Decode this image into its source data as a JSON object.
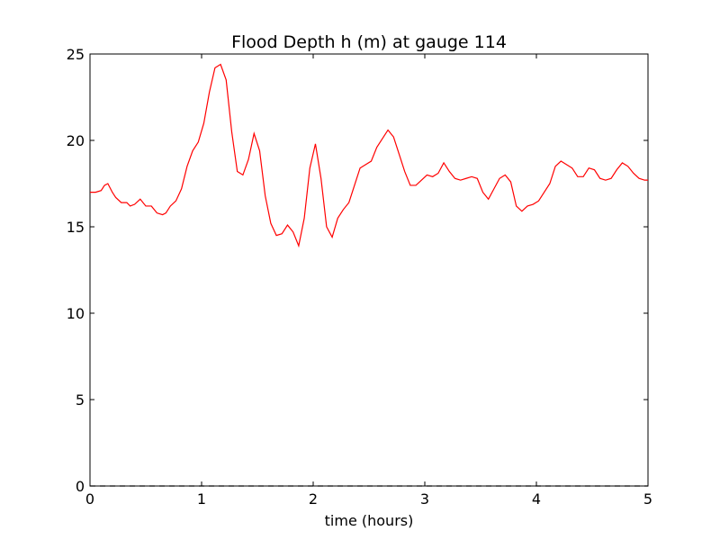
{
  "chart_data": {
    "type": "line",
    "title": "Flood Depth h (m) at gauge 114",
    "xlabel": "time (hours)",
    "ylabel": "",
    "xlim": [
      0,
      5
    ],
    "ylim": [
      0,
      25
    ],
    "xticks": [
      0,
      1,
      2,
      3,
      4,
      5
    ],
    "xtick_labels": [
      "0",
      "1",
      "2",
      "3",
      "4",
      "5"
    ],
    "yticks": [
      0,
      5,
      10,
      15,
      20,
      25
    ],
    "ytick_labels": [
      "0",
      "5",
      "10",
      "15",
      "20",
      "25"
    ],
    "grid": false,
    "legend": "none",
    "series": [
      {
        "style": "solid",
        "color": "#ff0000",
        "x": [
          0,
          0.05,
          0.1,
          0.13,
          0.16,
          0.2,
          0.23,
          0.28,
          0.33,
          0.36,
          0.4,
          0.45,
          0.5,
          0.55,
          0.6,
          0.65,
          0.68,
          0.72,
          0.77,
          0.82,
          0.87,
          0.92,
          0.97,
          1.02,
          1.07,
          1.12,
          1.17,
          1.22,
          1.27,
          1.32,
          1.37,
          1.42,
          1.47,
          1.52,
          1.57,
          1.62,
          1.67,
          1.72,
          1.77,
          1.82,
          1.87,
          1.92,
          1.97,
          2.02,
          2.07,
          2.12,
          2.17,
          2.22,
          2.27,
          2.32,
          2.37,
          2.42,
          2.47,
          2.52,
          2.57,
          2.62,
          2.67,
          2.72,
          2.77,
          2.82,
          2.87,
          2.92,
          2.97,
          3.02,
          3.07,
          3.12,
          3.17,
          3.22,
          3.27,
          3.32,
          3.37,
          3.42,
          3.47,
          3.52,
          3.57,
          3.62,
          3.67,
          3.72,
          3.77,
          3.82,
          3.87,
          3.92,
          3.97,
          4.02,
          4.07,
          4.12,
          4.17,
          4.22,
          4.27,
          4.32,
          4.37,
          4.42,
          4.47,
          4.52,
          4.57,
          4.62,
          4.67,
          4.72,
          4.77,
          4.82,
          4.87,
          4.92,
          4.97,
          5.0
        ],
        "y": [
          17.0,
          17.0,
          17.1,
          17.4,
          17.5,
          17.0,
          16.7,
          16.4,
          16.4,
          16.2,
          16.3,
          16.6,
          16.2,
          16.2,
          15.8,
          15.7,
          15.8,
          16.2,
          16.5,
          17.2,
          18.5,
          19.4,
          19.9,
          21.0,
          22.8,
          24.2,
          24.4,
          23.5,
          20.5,
          18.2,
          18.0,
          18.9,
          20.4,
          19.4,
          16.8,
          15.2,
          14.5,
          14.6,
          15.1,
          14.7,
          13.9,
          15.5,
          18.4,
          19.8,
          17.8,
          15.0,
          14.4,
          15.5,
          16.0,
          16.4,
          17.4,
          18.4,
          18.6,
          18.8,
          19.6,
          20.1,
          20.6,
          20.2,
          19.2,
          18.2,
          17.4,
          17.4,
          17.7,
          18.0,
          17.9,
          18.1,
          18.7,
          18.2,
          17.8,
          17.7,
          17.8,
          17.9,
          17.8,
          17.0,
          16.6,
          17.2,
          17.8,
          18.0,
          17.6,
          16.2,
          15.9,
          16.2,
          16.3,
          16.5,
          17.0,
          17.5,
          18.5,
          18.8,
          18.6,
          18.4,
          17.9,
          17.9,
          18.4,
          18.3,
          17.8,
          17.7,
          17.8,
          18.3,
          18.7,
          18.5,
          18.1,
          17.8,
          17.7,
          17.7
        ]
      },
      {
        "style": "dashed",
        "color": "#000000",
        "x": [
          0,
          5
        ],
        "y": [
          0,
          0
        ]
      }
    ]
  }
}
